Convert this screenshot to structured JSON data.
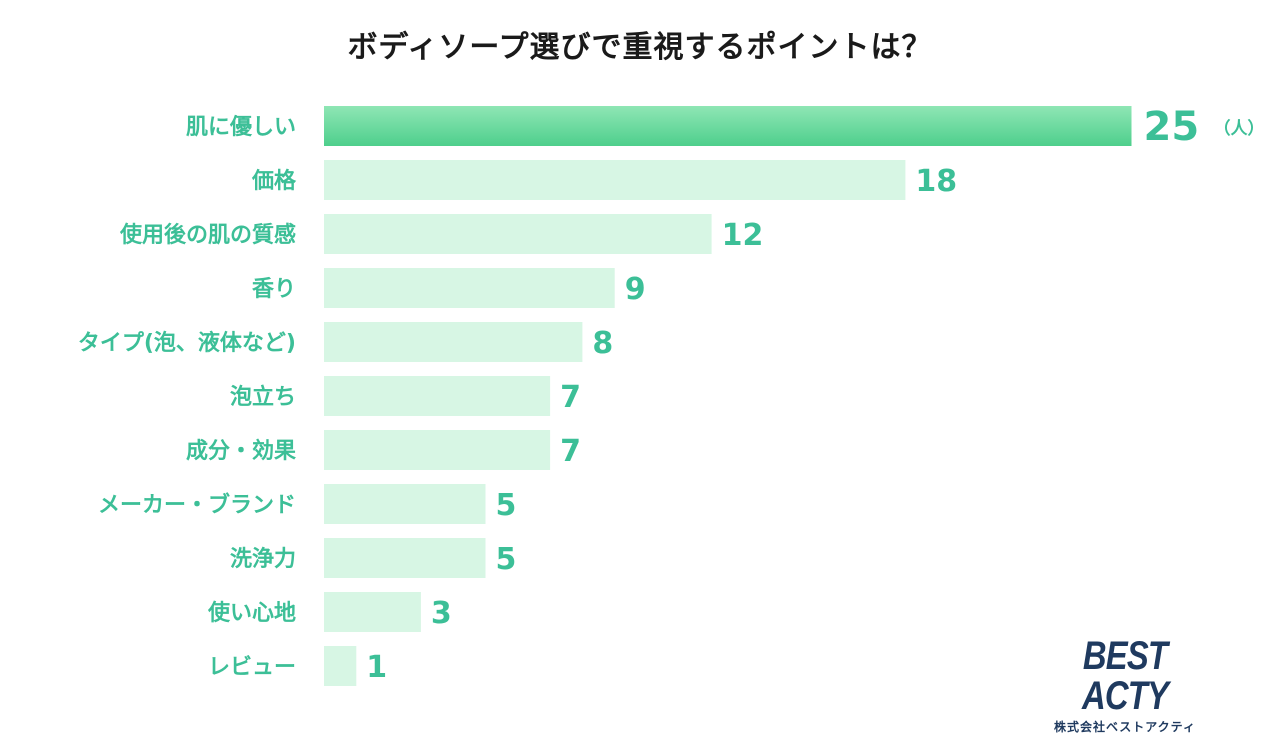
{
  "chart_data": {
    "type": "bar",
    "orientation": "horizontal",
    "title": "ボディソープ選びで重視するポイントは？",
    "unit": "（人）",
    "categories": [
      "肌に優しい",
      "価格",
      "使用後の肌の質感",
      "香り",
      "タイプ(泡、液体など)",
      "泡立ち",
      "成分・効果",
      "メーカー・ブランド",
      "洗浄力",
      "使い心地",
      "レビュー"
    ],
    "values": [
      25,
      18,
      12,
      9,
      8,
      7,
      7,
      5,
      5,
      3,
      1
    ],
    "highlight_index": 0,
    "colors": {
      "highlight_top": "#8fe6b5",
      "highlight_bottom": "#4ecf8c",
      "bar": "#d7f6e4",
      "label": "#3cbf97",
      "title": "#1a1a1a"
    }
  },
  "logo": {
    "name": "BEST ACTY",
    "company": "株式会社ベストアクティ"
  }
}
